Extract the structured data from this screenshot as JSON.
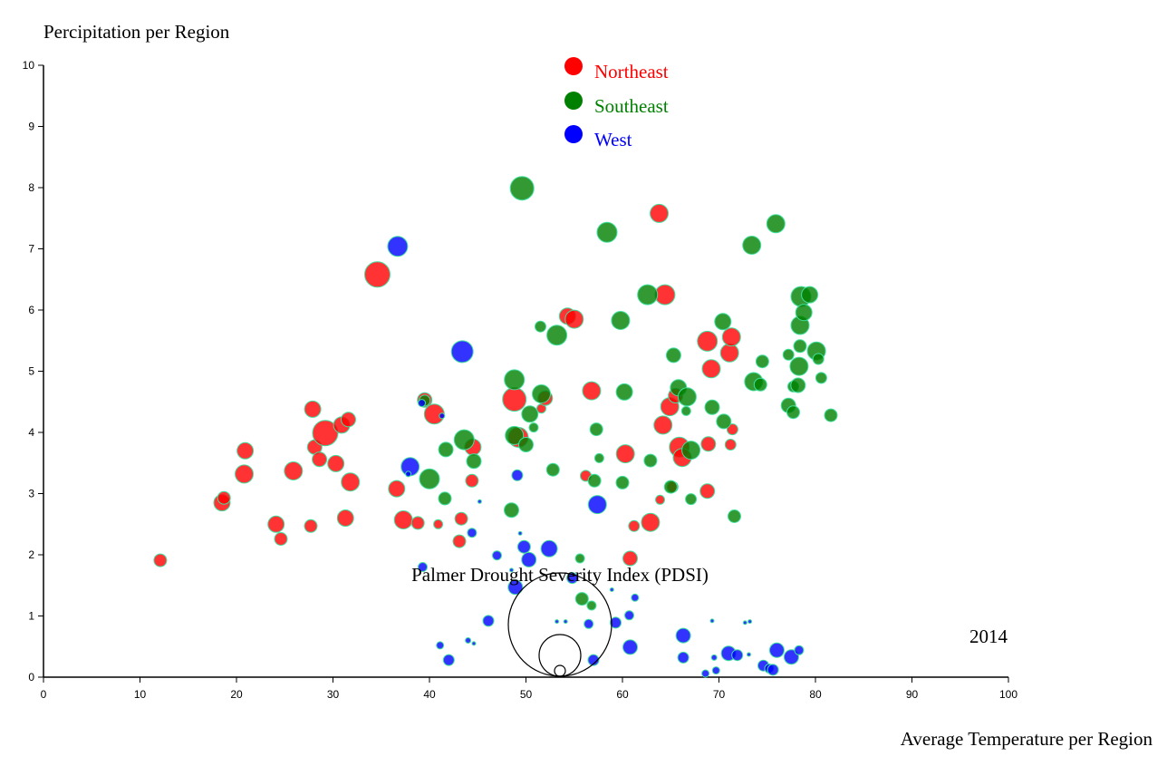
{
  "chart_data": {
    "type": "scatter",
    "title": "",
    "ylabel": "Percipitation per Region",
    "xlabel": "Average Temperature per Region",
    "xlim": [
      0,
      100
    ],
    "ylim": [
      0,
      10
    ],
    "x_ticks": [
      "0",
      "10",
      "20",
      "30",
      "40",
      "50",
      "60",
      "70",
      "80",
      "90",
      "100"
    ],
    "y_ticks": [
      "0",
      "1",
      "2",
      "3",
      "4",
      "5",
      "6",
      "7",
      "8",
      "9",
      "10"
    ],
    "year_label": "2014",
    "size_legend_title": "Palmer Drought Severity Index (PDSI)",
    "legend_placement": "top-center",
    "grid": false,
    "point_stroke_color": "#40e0a0",
    "series": [
      {
        "name": "Northeast",
        "color": "#ff0000",
        "points": [
          [
            12.1,
            1.91,
            7
          ],
          [
            18.5,
            2.85,
            9
          ],
          [
            18.7,
            2.93,
            7
          ],
          [
            20.9,
            3.7,
            9
          ],
          [
            20.8,
            3.32,
            10
          ],
          [
            24.1,
            2.5,
            9
          ],
          [
            24.6,
            2.26,
            7
          ],
          [
            25.9,
            3.37,
            10
          ],
          [
            27.7,
            2.47,
            7
          ],
          [
            27.9,
            4.38,
            9
          ],
          [
            28.1,
            3.76,
            8
          ],
          [
            28.6,
            3.56,
            8
          ],
          [
            29.2,
            3.99,
            14
          ],
          [
            30.3,
            3.49,
            9
          ],
          [
            30.9,
            4.12,
            9
          ],
          [
            31.3,
            2.6,
            9
          ],
          [
            31.6,
            4.21,
            8
          ],
          [
            31.8,
            3.19,
            10
          ],
          [
            34.6,
            6.58,
            14
          ],
          [
            36.6,
            3.08,
            9
          ],
          [
            37.3,
            2.57,
            10
          ],
          [
            38.8,
            2.52,
            7
          ],
          [
            39.5,
            4.53,
            8
          ],
          [
            40.5,
            4.3,
            11
          ],
          [
            40.9,
            2.5,
            5
          ],
          [
            43.1,
            2.22,
            7
          ],
          [
            43.3,
            2.59,
            7
          ],
          [
            44.5,
            3.76,
            9
          ],
          [
            44.4,
            3.21,
            7
          ],
          [
            48.8,
            4.54,
            13
          ],
          [
            49.2,
            3.92,
            11
          ],
          [
            51.6,
            4.39,
            5
          ],
          [
            52,
            4.56,
            8
          ],
          [
            54.3,
            5.9,
            9
          ],
          [
            55,
            5.85,
            10
          ],
          [
            56.2,
            3.29,
            6
          ],
          [
            56.8,
            4.68,
            10
          ],
          [
            60.3,
            3.65,
            10
          ],
          [
            60.8,
            1.94,
            8
          ],
          [
            61.2,
            2.47,
            6
          ],
          [
            62.9,
            2.53,
            10
          ],
          [
            63.8,
            7.58,
            10
          ],
          [
            63.9,
            2.9,
            5
          ],
          [
            64.2,
            4.12,
            10
          ],
          [
            64.4,
            6.25,
            11
          ],
          [
            64.9,
            4.42,
            10
          ],
          [
            65.2,
            3.11,
            6
          ],
          [
            65.5,
            4.6,
            8
          ],
          [
            65.9,
            3.76,
            11
          ],
          [
            66.2,
            3.59,
            10
          ],
          [
            68.8,
            5.49,
            11
          ],
          [
            68.9,
            3.81,
            8
          ],
          [
            68.8,
            3.04,
            8
          ],
          [
            69.2,
            5.04,
            10
          ],
          [
            71.1,
            5.3,
            10
          ],
          [
            71.2,
            3.8,
            6
          ],
          [
            71.3,
            5.56,
            10
          ],
          [
            71.4,
            4.05,
            6
          ]
        ]
      },
      {
        "name": "Southeast",
        "color": "#008000",
        "points": [
          [
            39.5,
            4.52,
            6
          ],
          [
            41.7,
            3.72,
            8
          ],
          [
            41.6,
            2.92,
            7
          ],
          [
            40,
            3.24,
            11
          ],
          [
            43.6,
            3.88,
            11
          ],
          [
            44.6,
            3.53,
            8
          ],
          [
            48.5,
            2.73,
            8
          ],
          [
            48.8,
            4.86,
            11
          ],
          [
            48.8,
            3.95,
            10
          ],
          [
            49.6,
            7.99,
            13
          ],
          [
            50,
            3.8,
            8
          ],
          [
            50.4,
            4.3,
            9
          ],
          [
            50.8,
            4.08,
            5
          ],
          [
            51.5,
            5.73,
            6
          ],
          [
            51.6,
            4.63,
            10
          ],
          [
            52.8,
            3.39,
            7
          ],
          [
            53.2,
            5.59,
            11
          ],
          [
            55.6,
            1.94,
            5
          ],
          [
            55.8,
            1.28,
            7
          ],
          [
            56.8,
            1.17,
            5
          ],
          [
            57.1,
            3.21,
            7
          ],
          [
            57.3,
            4.05,
            7
          ],
          [
            57.6,
            3.58,
            5
          ],
          [
            58.4,
            7.27,
            11
          ],
          [
            59.8,
            5.83,
            10
          ],
          [
            60.2,
            4.66,
            9
          ],
          [
            60,
            3.18,
            7
          ],
          [
            62.6,
            6.25,
            11
          ],
          [
            62.9,
            3.54,
            7
          ],
          [
            65,
            3.11,
            7
          ],
          [
            65.3,
            5.26,
            8
          ],
          [
            65.8,
            4.73,
            9
          ],
          [
            66.7,
            4.58,
            10
          ],
          [
            66.6,
            4.35,
            5
          ],
          [
            67.1,
            2.91,
            6
          ],
          [
            67.1,
            3.71,
            10
          ],
          [
            69.3,
            4.41,
            8
          ],
          [
            70.4,
            5.81,
            9
          ],
          [
            70.5,
            4.18,
            8
          ],
          [
            71.6,
            2.63,
            7
          ],
          [
            73.4,
            7.06,
            10
          ],
          [
            73.6,
            4.83,
            10
          ],
          [
            74.3,
            4.78,
            7
          ],
          [
            74.5,
            5.16,
            7
          ],
          [
            75.9,
            7.41,
            10
          ],
          [
            77.2,
            5.27,
            6
          ],
          [
            77.2,
            4.44,
            8
          ],
          [
            77.7,
            4.33,
            7
          ],
          [
            77.7,
            4.75,
            6
          ],
          [
            78.2,
            4.77,
            8
          ],
          [
            78.3,
            5.08,
            10
          ],
          [
            78.4,
            5.41,
            7
          ],
          [
            78.4,
            5.75,
            10
          ],
          [
            78.5,
            6.22,
            11
          ],
          [
            78.8,
            5.96,
            9
          ],
          [
            79.4,
            6.25,
            9
          ],
          [
            80.1,
            5.33,
            10
          ],
          [
            80.3,
            5.2,
            6
          ],
          [
            80.6,
            4.89,
            6
          ],
          [
            81.6,
            4.28,
            7
          ]
        ]
      },
      {
        "name": "West",
        "color": "#0000ff",
        "points": [
          [
            36.7,
            7.04,
            11
          ],
          [
            38,
            3.44,
            10
          ],
          [
            39.2,
            4.48,
            4
          ],
          [
            37.8,
            3.32,
            3
          ],
          [
            39.3,
            1.8,
            5
          ],
          [
            41.3,
            4.27,
            3
          ],
          [
            41.1,
            0.52,
            4
          ],
          [
            42,
            0.28,
            6
          ],
          [
            43.4,
            5.32,
            12
          ],
          [
            44,
            0.6,
            3
          ],
          [
            44.6,
            0.55,
            2
          ],
          [
            44.4,
            2.36,
            5
          ],
          [
            45.2,
            2.87,
            2
          ],
          [
            46.1,
            0.92,
            6
          ],
          [
            47,
            1.99,
            5
          ],
          [
            48.5,
            1.75,
            2
          ],
          [
            48.9,
            1.47,
            8
          ],
          [
            49.1,
            3.3,
            6
          ],
          [
            49.4,
            2.35,
            2
          ],
          [
            49.8,
            2.13,
            7
          ],
          [
            50.3,
            1.92,
            8
          ],
          [
            52.4,
            2.1,
            9
          ],
          [
            53.2,
            0.91,
            2
          ],
          [
            54.1,
            0.91,
            2
          ],
          [
            54.8,
            1.62,
            6
          ],
          [
            56.5,
            0.87,
            5
          ],
          [
            57,
            0.28,
            6
          ],
          [
            57.4,
            2.82,
            10
          ],
          [
            58.9,
            1.43,
            2
          ],
          [
            59.3,
            0.89,
            6
          ],
          [
            60.7,
            1.01,
            5
          ],
          [
            60.8,
            0.49,
            8
          ],
          [
            61.3,
            1.3,
            4
          ],
          [
            66.3,
            0.68,
            8
          ],
          [
            66.3,
            0.32,
            6
          ],
          [
            68.6,
            0.06,
            4
          ],
          [
            69.3,
            0.92,
            2
          ],
          [
            69.5,
            0.32,
            3
          ],
          [
            69.7,
            0.11,
            4
          ],
          [
            71,
            0.39,
            8
          ],
          [
            71.9,
            0.36,
            6
          ],
          [
            72.7,
            0.89,
            2
          ],
          [
            73.1,
            0.37,
            2
          ],
          [
            73.2,
            0.91,
            2
          ],
          [
            74.6,
            0.19,
            6
          ],
          [
            75.2,
            0.14,
            5
          ],
          [
            75.6,
            0.12,
            6
          ],
          [
            76,
            0.44,
            8
          ],
          [
            77.5,
            0.33,
            8
          ],
          [
            78.3,
            0.44,
            5
          ]
        ]
      }
    ]
  }
}
